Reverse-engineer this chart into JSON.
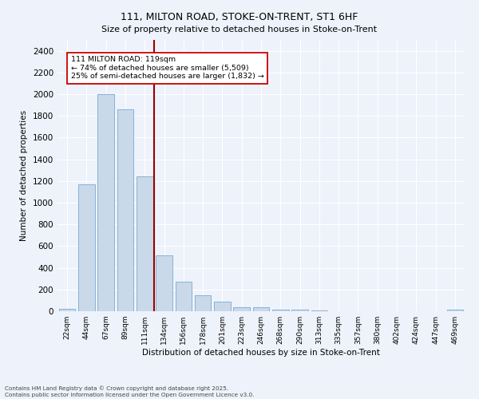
{
  "title": "111, MILTON ROAD, STOKE-ON-TRENT, ST1 6HF",
  "subtitle": "Size of property relative to detached houses in Stoke-on-Trent",
  "xlabel": "Distribution of detached houses by size in Stoke-on-Trent",
  "ylabel": "Number of detached properties",
  "bar_color": "#c9d9ea",
  "bar_edge_color": "#7aaace",
  "background_color": "#eef2fb",
  "grid_color": "#ffffff",
  "categories": [
    "22sqm",
    "44sqm",
    "67sqm",
    "89sqm",
    "111sqm",
    "134sqm",
    "156sqm",
    "178sqm",
    "201sqm",
    "223sqm",
    "246sqm",
    "268sqm",
    "290sqm",
    "313sqm",
    "335sqm",
    "357sqm",
    "380sqm",
    "402sqm",
    "424sqm",
    "447sqm",
    "469sqm"
  ],
  "values": [
    25,
    1170,
    2000,
    1860,
    1240,
    515,
    275,
    150,
    90,
    40,
    40,
    15,
    15,
    5,
    2,
    2,
    2,
    0,
    0,
    0,
    15
  ],
  "annotation_text": "111 MILTON ROAD: 119sqm\n← 74% of detached houses are smaller (5,509)\n25% of semi-detached houses are larger (1,832) →",
  "vline_x": 4.5,
  "vline_color": "#990000",
  "ylim": [
    0,
    2500
  ],
  "yticks": [
    0,
    200,
    400,
    600,
    800,
    1000,
    1200,
    1400,
    1600,
    1800,
    2000,
    2200,
    2400
  ],
  "footnote1": "Contains HM Land Registry data © Crown copyright and database right 2025.",
  "footnote2": "Contains public sector information licensed under the Open Government Licence v3.0."
}
